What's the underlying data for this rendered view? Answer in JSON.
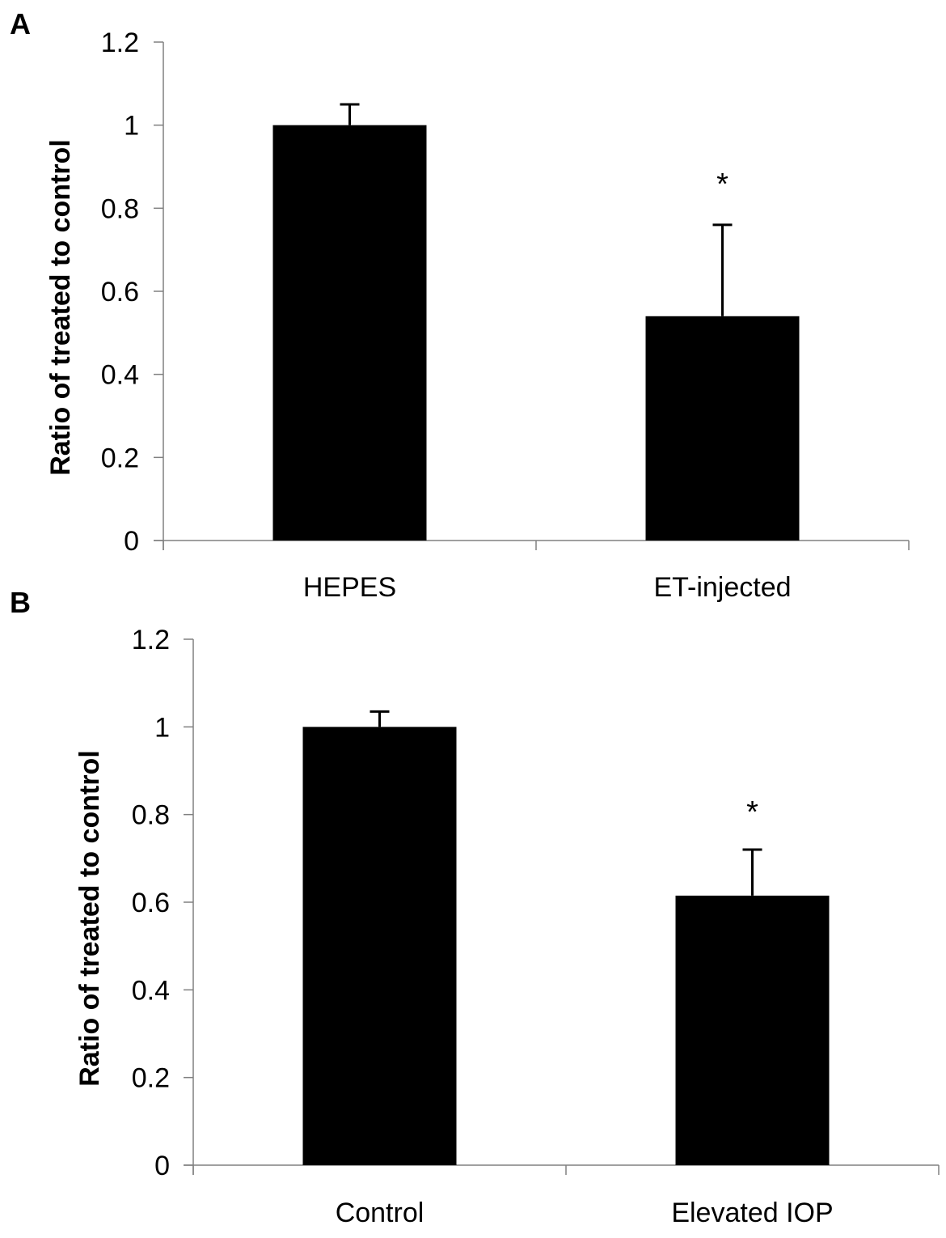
{
  "chart_data": [
    {
      "panel": "A",
      "type": "bar",
      "title": "",
      "xlabel": "",
      "ylabel": "Ratio of treated to control",
      "ylim": [
        0,
        1.2
      ],
      "yticks": [
        0,
        0.2,
        0.4,
        0.6,
        0.8,
        1,
        1.2
      ],
      "ytick_labels": [
        "0",
        "0.2",
        "0.4",
        "0.6",
        "0.8",
        "1",
        "1.2"
      ],
      "categories": [
        "HEPES",
        "ET-injected"
      ],
      "values": [
        1.0,
        0.54
      ],
      "errors": [
        0.05,
        0.22
      ],
      "significance": [
        "",
        "*"
      ],
      "bar_color": "#000000",
      "grid": false,
      "legend": "none"
    },
    {
      "panel": "B",
      "type": "bar",
      "title": "",
      "xlabel": "",
      "ylabel": "Ratio of treated to control",
      "ylim": [
        0,
        1.2
      ],
      "yticks": [
        0,
        0.2,
        0.4,
        0.6,
        0.8,
        1,
        1.2
      ],
      "ytick_labels": [
        "0",
        "0.2",
        "0.4",
        "0.6",
        "0.8",
        "1",
        "1.2"
      ],
      "categories": [
        "Control",
        "Elevated IOP"
      ],
      "values": [
        1.0,
        0.615
      ],
      "errors": [
        0.035,
        0.105
      ],
      "significance": [
        "",
        "*"
      ],
      "bar_color": "#000000",
      "grid": false,
      "legend": "none"
    }
  ],
  "panel_letters": [
    "A",
    "B"
  ],
  "axis_color": "#808080"
}
